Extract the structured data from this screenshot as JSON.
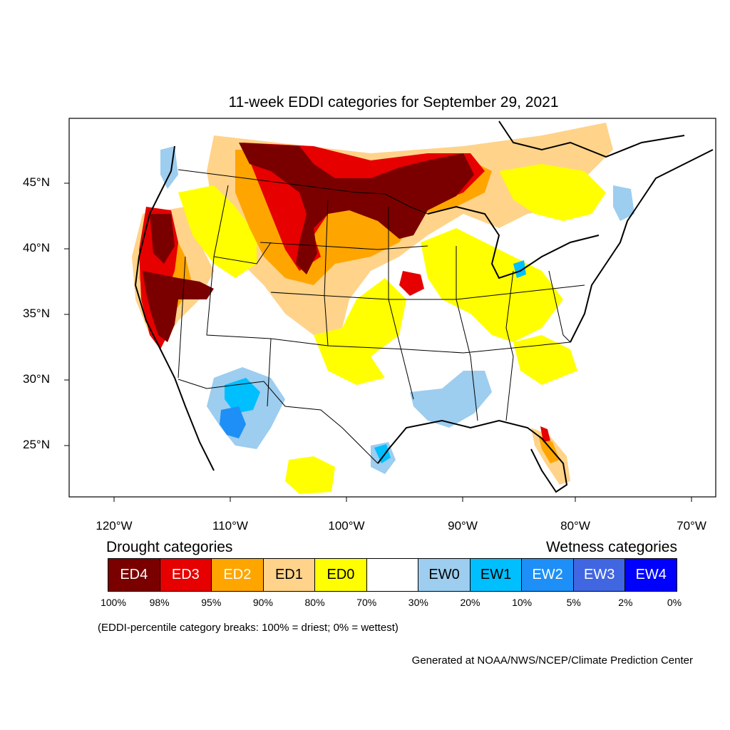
{
  "title": "11-week EDDI categories for September 29, 2021",
  "lat_labels": [
    "45°N",
    "40°N",
    "35°N",
    "30°N",
    "25°N"
  ],
  "lon_labels": [
    "120°W",
    "110°W",
    "100°W",
    "90°W",
    "80°W",
    "70°W"
  ],
  "legend": {
    "drought_heading": "Drought categories",
    "wetness_heading": "Wetness categories",
    "categories": [
      {
        "label": "ED4",
        "color": "#7a0000",
        "text_color": "#ffffff"
      },
      {
        "label": "ED3",
        "color": "#e60000",
        "text_color": "#ffffff"
      },
      {
        "label": "ED2",
        "color": "#ffa500",
        "text_color": "#ffffff"
      },
      {
        "label": "ED1",
        "color": "#ffd38a",
        "text_color": "#000000"
      },
      {
        "label": "ED0",
        "color": "#ffff00",
        "text_color": "#000000"
      },
      {
        "label": "",
        "color": "#ffffff",
        "text_color": "#000000"
      },
      {
        "label": "EW0",
        "color": "#9dcdef",
        "text_color": "#000000"
      },
      {
        "label": "EW1",
        "color": "#00bfff",
        "text_color": "#000000"
      },
      {
        "label": "EW2",
        "color": "#1e8ff6",
        "text_color": "#ffffff"
      },
      {
        "label": "EW3",
        "color": "#4166e1",
        "text_color": "#ffffff"
      },
      {
        "label": "EW4",
        "color": "#0000ff",
        "text_color": "#ffffff"
      }
    ],
    "percent_breaks": [
      "100%",
      "98%",
      "95%",
      "90%",
      "80%",
      "70%",
      "30%",
      "20%",
      "10%",
      "5%",
      "2%",
      "0%"
    ]
  },
  "note": "(EDDI-percentile category breaks: 100% = driest; 0% = wettest)",
  "credit": "Generated at NOAA/NWS/NCEP/Climate Prediction Center"
}
